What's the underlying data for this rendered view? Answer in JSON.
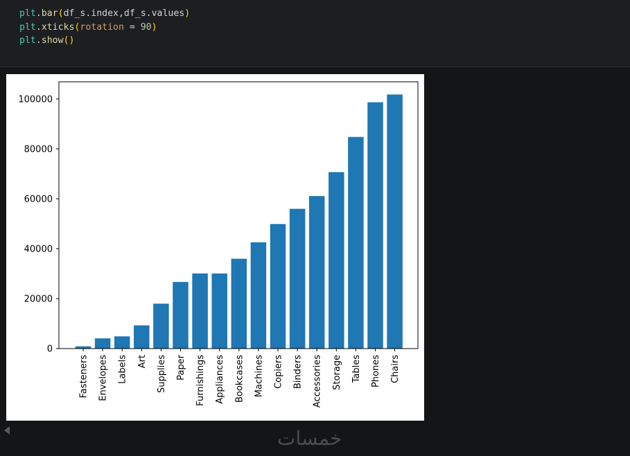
{
  "code_cell": {
    "lines": [
      [
        {
          "t": "plt",
          "c": "var"
        },
        {
          "t": ".",
          "c": "plain"
        },
        {
          "t": "bar",
          "c": "fn"
        },
        {
          "t": "(",
          "c": "paren"
        },
        {
          "t": "df_s.index,df_s.values",
          "c": "plain"
        },
        {
          "t": ")",
          "c": "paren"
        }
      ],
      [
        {
          "t": "plt",
          "c": "var"
        },
        {
          "t": ".",
          "c": "plain"
        },
        {
          "t": "xticks",
          "c": "fn"
        },
        {
          "t": "(",
          "c": "paren"
        },
        {
          "t": "rotation",
          "c": "kw"
        },
        {
          "t": " = ",
          "c": "plain"
        },
        {
          "t": "90",
          "c": "num"
        },
        {
          "t": ")",
          "c": "paren"
        }
      ],
      [
        {
          "t": "plt",
          "c": "var"
        },
        {
          "t": ".",
          "c": "plain"
        },
        {
          "t": "show",
          "c": "fn"
        },
        {
          "t": "()",
          "c": "paren"
        }
      ]
    ]
  },
  "chart_data": {
    "type": "bar",
    "categories": [
      "Fasteners",
      "Envelopes",
      "Labels",
      "Art",
      "Supplies",
      "Paper",
      "Furnishings",
      "Appliances",
      "Bookcases",
      "Machines",
      "Copiers",
      "Binders",
      "Accessories",
      "Storage",
      "Tables",
      "Phones",
      "Chairs"
    ],
    "values": [
      900,
      4100,
      4900,
      9300,
      18000,
      26700,
      30100,
      30100,
      36000,
      42600,
      49900,
      56000,
      61100,
      70700,
      84800,
      98700,
      101800
    ],
    "ylim": [
      0,
      106900
    ],
    "yticks": [
      0,
      20000,
      40000,
      60000,
      80000,
      100000
    ],
    "ytick_labels": [
      "0",
      "20000",
      "40000",
      "60000",
      "80000",
      "100000"
    ],
    "bar_color": "#1f77b4",
    "title": "",
    "xlabel": "",
    "ylabel": "",
    "xtick_rotation": 90,
    "grid": false
  },
  "watermark": "خمسات",
  "colors": {
    "background": "#141517",
    "code_cell_bg": "#1d1e21",
    "output_bg": "#ffffff"
  }
}
